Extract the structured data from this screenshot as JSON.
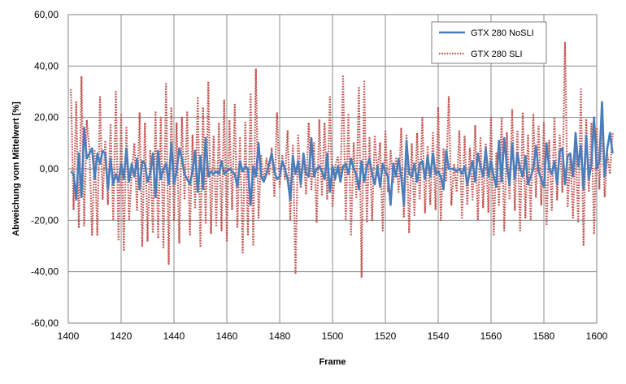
{
  "chart_data": {
    "type": "line",
    "xlabel": "Frame",
    "ylabel": "Abweichung vom Mittelwert [%]",
    "xlim": [
      1400,
      1600
    ],
    "ylim": [
      -60,
      60
    ],
    "x_ticks": [
      "1400",
      "1420",
      "1440",
      "1460",
      "1480",
      "1500",
      "1520",
      "1540",
      "1560",
      "1580",
      "1600"
    ],
    "y_ticks": [
      "60,00",
      "40,00",
      "20,00",
      "0,00",
      "-20,00",
      "-40,00",
      "-60,00"
    ],
    "grid": true,
    "legend_position": "top-right",
    "series": [
      {
        "name": "GTX 280 NoSLI",
        "color": "#4a7ebb",
        "style": "solid",
        "x_start": 1401,
        "x_step": 1,
        "values": [
          -1,
          -2,
          -12,
          6,
          -11,
          16,
          4,
          6,
          8,
          -4,
          6,
          2,
          7,
          6,
          -8,
          4,
          -6,
          -2,
          -5,
          2,
          -4,
          8,
          -5,
          2,
          -3,
          4,
          -8,
          3,
          2,
          -5,
          -2,
          6,
          -11,
          7,
          -4,
          0,
          2,
          -6,
          10,
          -6,
          -1,
          8,
          4,
          -2,
          -4,
          -6,
          -1,
          7,
          -9,
          5,
          -8,
          12,
          -3,
          -1,
          -2,
          -1,
          -2,
          3,
          -2,
          -1,
          0,
          -1,
          -2,
          -7,
          3,
          -1,
          1,
          0,
          -14,
          1,
          -3,
          10,
          -3,
          -5,
          -2,
          2,
          6,
          -1,
          -4,
          -3,
          3,
          0,
          -4,
          -12,
          5,
          -2,
          3,
          -6,
          6,
          -2,
          -3,
          12,
          -3,
          0,
          1,
          -1,
          -4,
          6,
          -9,
          1,
          -4,
          1,
          -5,
          1,
          2,
          -2,
          4,
          0,
          -2,
          -8,
          3,
          -5,
          1,
          4,
          -2,
          -6,
          1,
          -7,
          2,
          -1,
          -3,
          -14,
          2,
          -3,
          4,
          -3,
          -14,
          11,
          -2,
          -3,
          2,
          -5,
          2,
          3,
          -4,
          5,
          -3,
          6,
          -2,
          -1,
          -3,
          -8,
          7,
          0,
          0,
          0,
          -1,
          0,
          -2,
          1,
          -6,
          -1,
          3,
          -5,
          6,
          1,
          -3,
          8,
          -3,
          3,
          -3,
          -7,
          11,
          -5,
          12,
          1,
          -6,
          10,
          -4,
          6,
          0,
          -3,
          5,
          -6,
          -3,
          0,
          9,
          -1,
          -4,
          -7,
          10,
          0,
          -2,
          3,
          -6,
          7,
          8,
          -6,
          5,
          6,
          -3,
          14,
          1,
          9,
          -8,
          13,
          -4,
          2,
          20,
          0,
          3,
          26,
          -3,
          8,
          14,
          6
        ]
      },
      {
        "name": "GTX 280 SLI",
        "color": "#c0504d",
        "style": "dotted",
        "x_start": 1401,
        "x_step": 1,
        "values": [
          31,
          -16,
          26,
          -23,
          36,
          -22,
          19,
          8,
          -26,
          7,
          -26,
          28,
          -12,
          11,
          -14,
          17,
          -20,
          30,
          -28,
          21,
          -32,
          16,
          -20,
          -2,
          10,
          -16,
          22,
          -30,
          18,
          -28,
          7,
          -25,
          22,
          -27,
          20,
          -31,
          33,
          -37,
          24,
          -20,
          18,
          -29,
          20,
          -12,
          22,
          -26,
          13,
          -15,
          28,
          -30,
          24,
          -21,
          34,
          -25,
          13,
          -22,
          18,
          -24,
          27,
          -28,
          19,
          -16,
          25,
          -23,
          12,
          -33,
          18,
          -26,
          29,
          -30,
          39,
          -19,
          5,
          -5,
          4,
          -2,
          8,
          -11,
          22,
          -7,
          5,
          -4,
          15,
          -20,
          9,
          -41,
          13,
          -7,
          6,
          -10,
          18,
          -8,
          10,
          -21,
          19,
          -10,
          18,
          -12,
          28,
          -15,
          1,
          5,
          -5,
          36,
          -20,
          21,
          -26,
          10,
          -11,
          32,
          -42,
          34,
          -21,
          12,
          -20,
          13,
          -3,
          10,
          -24,
          15,
          -9,
          7,
          -5,
          4,
          -9,
          16,
          -19,
          13,
          -25,
          10,
          -18,
          14,
          -12,
          20,
          -17,
          9,
          -14,
          14,
          -16,
          24,
          -20,
          8,
          -5,
          28,
          -14,
          2,
          -9,
          15,
          -19,
          13,
          -14,
          8,
          -12,
          17,
          -20,
          12,
          -15,
          10,
          -17,
          20,
          -26,
          6,
          -14,
          20,
          -24,
          14,
          -12,
          23,
          -16,
          15,
          -24,
          22,
          -19,
          13,
          -20,
          21,
          -11,
          17,
          -14,
          18,
          -22,
          11,
          -16,
          20,
          -12,
          13,
          -9,
          49,
          -15,
          6,
          -19,
          10,
          -21,
          31,
          -30,
          19,
          -9,
          18,
          -25,
          16,
          -8,
          18,
          -11,
          6,
          -2,
          14
        ]
      }
    ]
  }
}
